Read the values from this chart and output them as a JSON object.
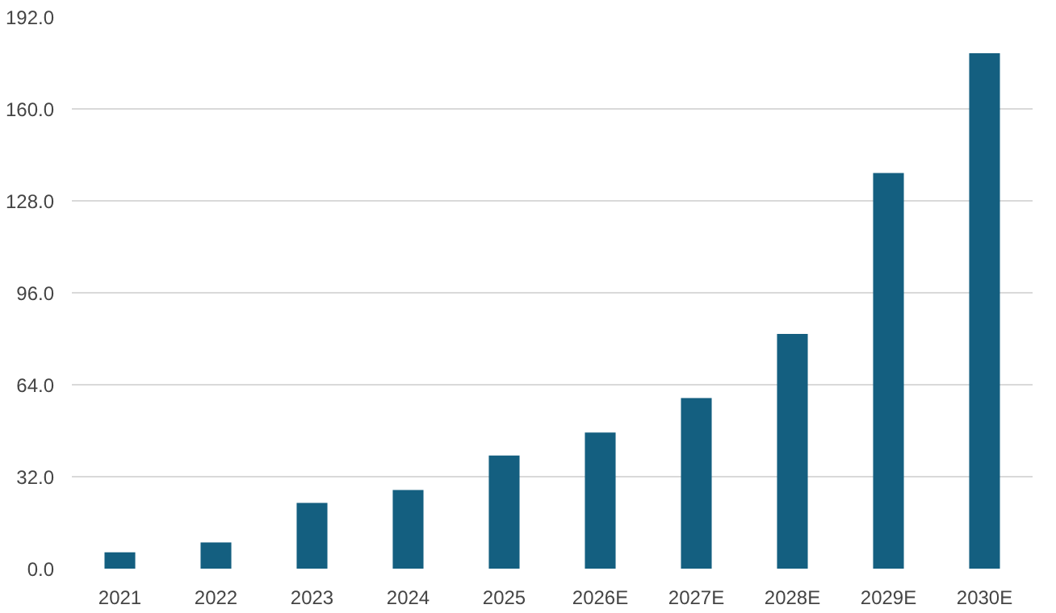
{
  "chart_data": {
    "type": "bar",
    "categories": [
      "2021",
      "2022",
      "2023",
      "2024",
      "2025",
      "2026E",
      "2027E",
      "2028E",
      "2029E",
      "2030E"
    ],
    "values": [
      5.7,
      9.1,
      22.9,
      27.4,
      39.4,
      47.4,
      59.4,
      81.7,
      137.7,
      179.4
    ],
    "color": "#145f80",
    "ylim": [
      0,
      192
    ],
    "yticks": [
      {
        "value": 0,
        "label": "0.0"
      },
      {
        "value": 32,
        "label": "32.0"
      },
      {
        "value": 64,
        "label": "64.0"
      },
      {
        "value": 96,
        "label": "96.0"
      },
      {
        "value": 128,
        "label": "128.0"
      },
      {
        "value": 160,
        "label": "160.0"
      },
      {
        "value": 192,
        "label": "192.0"
      }
    ],
    "grid": "y"
  }
}
